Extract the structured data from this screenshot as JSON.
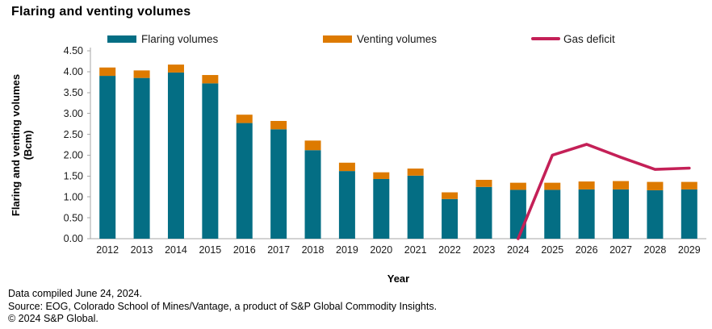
{
  "title": "Flaring and venting volumes",
  "legend": [
    {
      "label": "Flaring volumes",
      "color": "#046E84",
      "type": "bar"
    },
    {
      "label": "Venting volumes",
      "color": "#DD7A00",
      "type": "bar"
    },
    {
      "label": "Gas deficit",
      "color": "#C42057",
      "type": "line"
    }
  ],
  "axes": {
    "x_label": "Year",
    "y_label_line1": "Flaring and venting volumes",
    "y_label_line2": "(Bcm)"
  },
  "chart_data": {
    "type": "bar+line",
    "title": "Flaring and venting volumes",
    "xlabel": "Year",
    "ylabel": "Flaring and venting volumes (Bcm)",
    "ylim": [
      0,
      4.5
    ],
    "yticks": [
      "0.00",
      "0.50",
      "1.00",
      "1.50",
      "2.00",
      "2.50",
      "3.00",
      "3.50",
      "4.00",
      "4.50"
    ],
    "legend_position": "top",
    "grid": false,
    "categories": [
      "2012",
      "2013",
      "2014",
      "2015",
      "2016",
      "2017",
      "2018",
      "2019",
      "2020",
      "2021",
      "2022",
      "2023",
      "2024",
      "2025",
      "2026",
      "2027",
      "2028",
      "2029"
    ],
    "series": [
      {
        "name": "Flaring volumes",
        "type": "bar",
        "stacked": true,
        "color": "#046E84",
        "values": [
          3.9,
          3.85,
          3.98,
          3.72,
          2.77,
          2.62,
          2.12,
          1.62,
          1.43,
          1.51,
          0.95,
          1.24,
          1.17,
          1.17,
          1.18,
          1.18,
          1.16,
          1.18
        ]
      },
      {
        "name": "Venting volumes",
        "type": "bar",
        "stacked": true,
        "color": "#DD7A00",
        "values": [
          0.2,
          0.18,
          0.19,
          0.2,
          0.2,
          0.2,
          0.23,
          0.2,
          0.16,
          0.17,
          0.16,
          0.17,
          0.17,
          0.17,
          0.19,
          0.2,
          0.2,
          0.18
        ]
      },
      {
        "name": "Gas deficit",
        "type": "line",
        "color": "#C42057",
        "values": [
          null,
          null,
          null,
          null,
          null,
          null,
          null,
          null,
          null,
          null,
          null,
          null,
          0.0,
          2.0,
          2.26,
          1.95,
          1.66,
          1.69
        ]
      }
    ]
  },
  "footer": {
    "line1": "Data compiled June 24, 2024.",
    "line2": "Source: EOG, Colorado School of Mines/Vantage, a product of S&P Global Commodity Insights.",
    "line3": "© 2024 S&P Global."
  }
}
